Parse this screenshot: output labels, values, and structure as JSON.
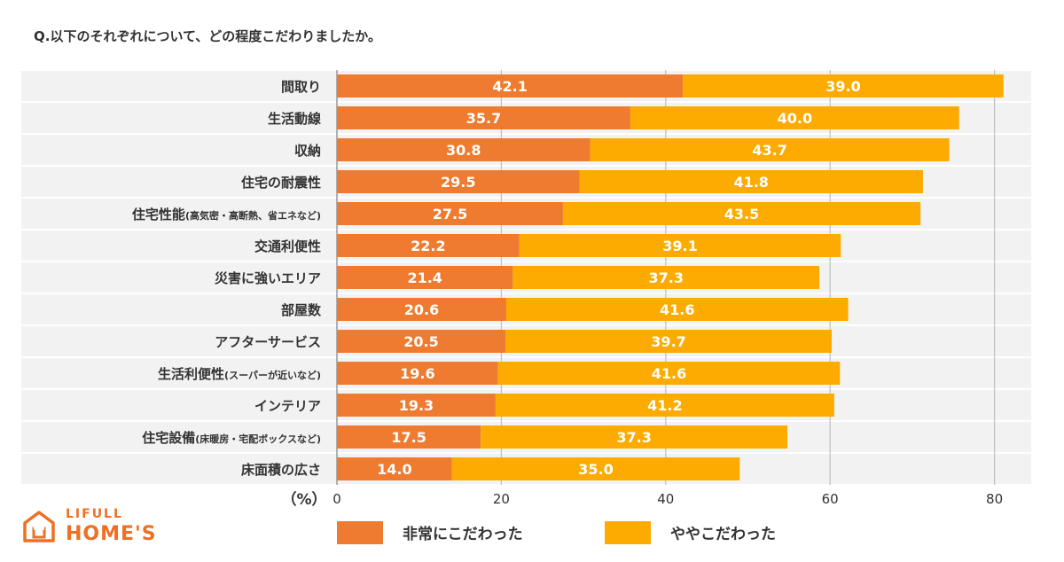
{
  "title": "Q.以下のそれぞれについて、どの程度こだわりましたか。",
  "colors": {
    "series1": "#ee7b30",
    "series2": "#fdab00",
    "stripe": "#f2f2f2",
    "grid": "#bfbfbf",
    "logo": "#ee7023"
  },
  "logo": {
    "top": "LIFULL",
    "bottom": "HOME'S",
    "icon": "house-icon"
  },
  "chart_data": {
    "type": "bar",
    "orientation": "horizontal",
    "stacked": true,
    "categories": [
      {
        "main": "間取り",
        "sub": ""
      },
      {
        "main": "生活動線",
        "sub": ""
      },
      {
        "main": "収納",
        "sub": ""
      },
      {
        "main": "住宅の耐震性",
        "sub": ""
      },
      {
        "main": "住宅性能",
        "sub": "(高気密・高断熱、省エネなど)"
      },
      {
        "main": "交通利便性",
        "sub": ""
      },
      {
        "main": "災害に強いエリア",
        "sub": ""
      },
      {
        "main": "部屋数",
        "sub": ""
      },
      {
        "main": "アフターサービス",
        "sub": ""
      },
      {
        "main": "生活利便性",
        "sub": "(スーパーが近いなど)"
      },
      {
        "main": "インテリア",
        "sub": ""
      },
      {
        "main": "住宅設備",
        "sub": "(床暖房・宅配ボックスなど)"
      },
      {
        "main": "床面積の広さ",
        "sub": ""
      }
    ],
    "series": [
      {
        "name": "非常にこだわった",
        "values": [
          "42.1",
          "35.7",
          "30.8",
          "29.5",
          "27.5",
          "22.2",
          "21.4",
          "20.6",
          "20.5",
          "19.6",
          "19.3",
          "17.5",
          "14.0"
        ]
      },
      {
        "name": "ややこだわった",
        "values": [
          "39.0",
          "40.0",
          "43.7",
          "41.8",
          "43.5",
          "39.1",
          "37.3",
          "41.6",
          "39.7",
          "41.6",
          "41.2",
          "37.3",
          "35.0"
        ]
      }
    ],
    "xticks": [
      "0",
      "20",
      "40",
      "60",
      "80"
    ],
    "xlim": [
      0,
      85
    ],
    "unit": "（%）",
    "legend_position": "bottom"
  }
}
